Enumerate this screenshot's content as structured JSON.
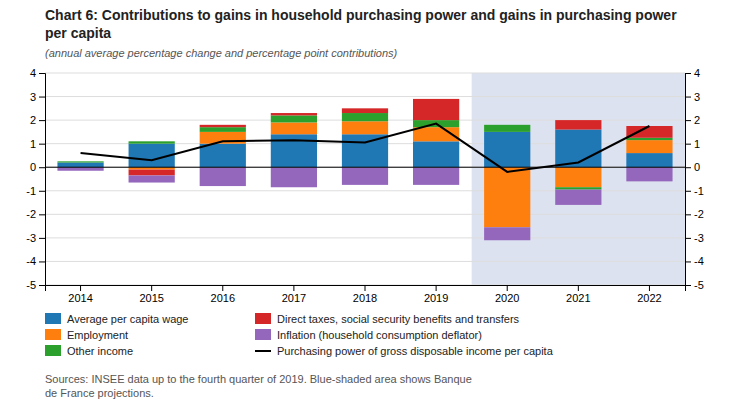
{
  "chart_data": {
    "type": "bar",
    "stacked": true,
    "title": "Chart 6: Contributions to gains in household purchasing power and gains in purchasing power per capita",
    "subtitle": "(annual average percentage change and percentage point contributions)",
    "annotations": [
      "Sources: INSEE data up to the fourth quarter of 2019. Blue-shaded area shows Banque\nde France projections."
    ],
    "categories": [
      2014,
      2015,
      2016,
      2017,
      2018,
      2019,
      2020,
      2021,
      2022
    ],
    "series": [
      {
        "name": "Average per capita wage",
        "values": [
          0.2,
          1.0,
          1.0,
          1.4,
          1.4,
          1.1,
          1.5,
          1.6,
          0.6
        ]
      },
      {
        "name": "Employment",
        "values": [
          0.0,
          -0.1,
          0.5,
          0.5,
          0.55,
          0.6,
          -2.55,
          -0.85,
          0.55
        ]
      },
      {
        "name": "Other income",
        "values": [
          0.05,
          0.1,
          0.2,
          0.3,
          0.35,
          0.3,
          0.3,
          -0.1,
          0.1
        ]
      },
      {
        "name": "Direct taxes, social security benefits and transfers",
        "values": [
          0.0,
          -0.25,
          0.1,
          0.1,
          0.2,
          0.9,
          0.0,
          0.4,
          0.5
        ]
      },
      {
        "name": "Inflation (household consumption deflator)",
        "values": [
          -0.15,
          -0.3,
          -0.8,
          -0.85,
          -0.75,
          -0.75,
          -0.55,
          -0.65,
          -0.6
        ]
      },
      {
        "name": "Purchasing power of gross disposable income per capita",
        "type": "line",
        "color": "#000000",
        "values": [
          0.6,
          0.3,
          1.1,
          1.15,
          1.05,
          1.85,
          -0.2,
          0.2,
          1.75
        ]
      }
    ],
    "ylim": [
      -5,
      4
    ],
    "yticks": [
      -5,
      -4,
      -3,
      -2,
      -1,
      0,
      1,
      2,
      3,
      4
    ],
    "y2lim": [
      -5,
      4
    ],
    "y2ticks": [
      -5,
      -4,
      -3,
      -2,
      -1,
      0,
      1,
      2,
      3,
      4
    ],
    "grid": true,
    "legend": "bottom",
    "shaded_region": {
      "from": 2020,
      "color": "#dde2f0"
    }
  }
}
